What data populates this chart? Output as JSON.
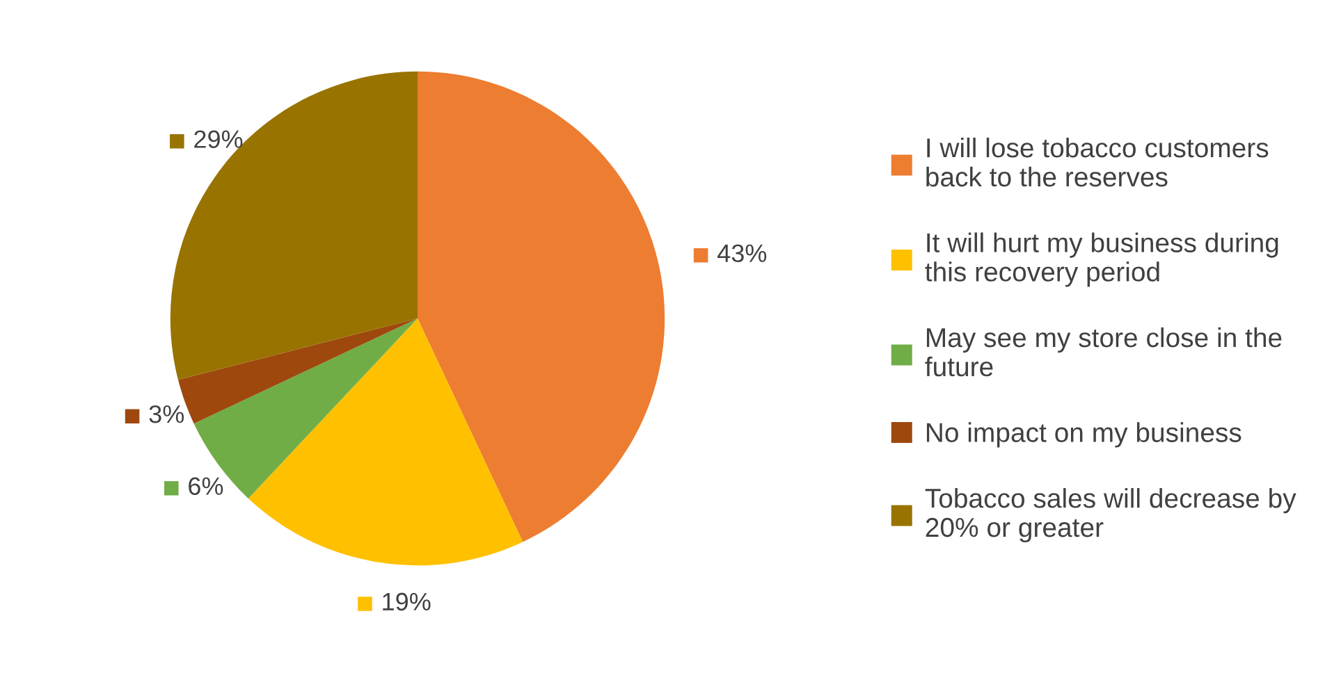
{
  "chart_data": {
    "type": "pie",
    "categories": [
      "I will lose tobacco customers back to the reserves",
      "It will hurt my business during this recovery period",
      "May see my store close in the future",
      "No impact on my business",
      "Tobacco sales will decrease by 20% or greater"
    ],
    "values": [
      43,
      19,
      6,
      3,
      29
    ],
    "colors": [
      "#ed7d31",
      "#ffc000",
      "#70ad47",
      "#9e480e",
      "#997300"
    ],
    "value_labels": [
      "43%",
      "19%",
      "6%",
      "3%",
      "29%"
    ],
    "legend": "right"
  }
}
